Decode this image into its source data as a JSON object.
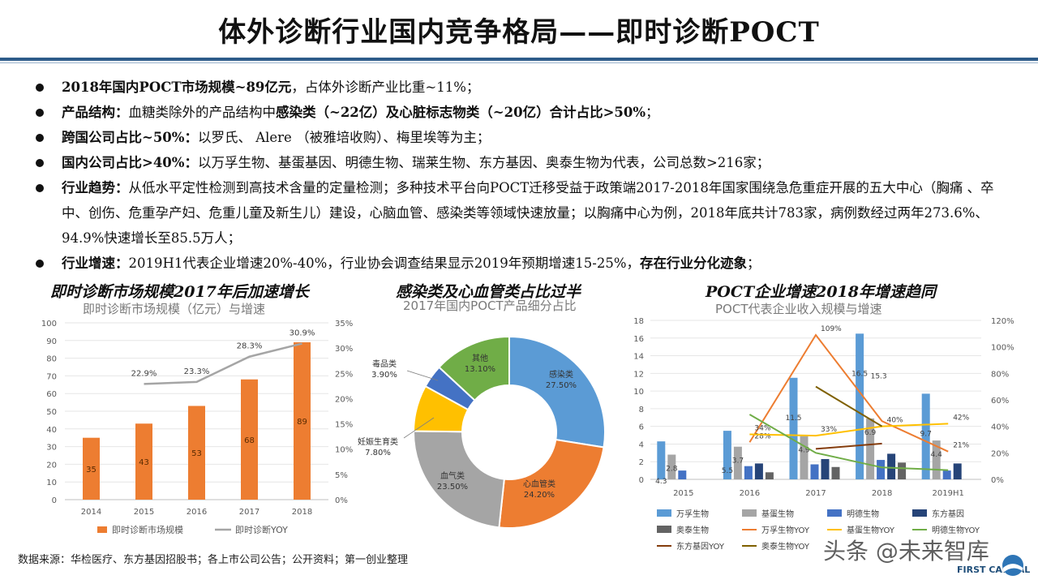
{
  "title": "体外诊断行业国内竞争格局——即时诊断POCT",
  "bullets": [
    {
      "bold": "2018年国内POCT市场规模~89亿元",
      "text": "，占体外诊断产业比重~11%；"
    },
    {
      "bold": "产品结构：",
      "text": "血糖类除外的产品结构中",
      "bold2": "感染类（~22亿）及心脏标志物类（~20亿）合计占比>50%",
      "text2": "；"
    },
    {
      "bold": "跨国公司占比~50%：",
      "text": "以罗氏、 Alere （被雅培收购）、梅里埃等为主；"
    },
    {
      "bold": "国内公司占比>40%：",
      "text": "以万孚生物、基蛋基因、明德生物、瑞莱生物、东方基因、奥泰生物为代表，公司总数>216家；"
    },
    {
      "bold": "行业趋势：",
      "text": "从低水平定性检测到高技术含量的定量检测；多种技术平台向POCT迁移受益于政策端2017-2018年国家围绕急危重症开展的五大中心（胸痛 、卒中、创伤、危重孕产妇、危重儿童及新生儿）建设，心脑血管、感染类等领域快速放量；以胸痛中心为例，2018年底共计783家，病例数经过两年273.6%、94.9%快速增长至85.5万人；"
    },
    {
      "bold": "行业增速：",
      "text": "2019H1代表企业增速20%-40%，行业协会调查结果显示2019年预期增速15-25%，",
      "bold2": "存在行业分化迹象",
      "text2": "；"
    }
  ],
  "chart_data": [
    {
      "type": "bar",
      "heading": "即时诊断市场规模2017年后加速增长",
      "title": "即时诊断市场规模（亿元）与增速",
      "categories": [
        "2014",
        "2015",
        "2016",
        "2017",
        "2018"
      ],
      "series": [
        {
          "name": "即时诊断市场规模",
          "values": [
            35,
            43,
            53,
            68,
            89
          ],
          "color": "#ed7d31"
        },
        {
          "name": "即时诊断YOY",
          "type": "line",
          "values": [
            null,
            22.9,
            23.3,
            28.3,
            30.9
          ],
          "labels": [
            "",
            "22.9%",
            "23.3%",
            "28.3%",
            "30.9%"
          ],
          "color": "#a5a5a5"
        }
      ],
      "ylim": [
        0,
        100
      ],
      "yticks": [
        "0",
        "10",
        "20",
        "30",
        "40",
        "50",
        "60",
        "70",
        "80",
        "90",
        "100"
      ],
      "y2lim": [
        0,
        35
      ],
      "y2ticks": [
        "0%",
        "5%",
        "10%",
        "15%",
        "20%",
        "25%",
        "30%",
        "35%"
      ],
      "legend": "bottom"
    },
    {
      "type": "pie",
      "heading": "感染类及心血管类占比过半",
      "title": "2017年国内POCT产品细分占比",
      "slices": [
        {
          "name": "感染类",
          "value": 27.5,
          "label": "27.50%",
          "color": "#5b9bd5"
        },
        {
          "name": "心血管类",
          "value": 24.2,
          "label": "24.20%",
          "color": "#ed7d31"
        },
        {
          "name": "血气类",
          "value": 23.5,
          "label": "23.50%",
          "color": "#a5a5a5"
        },
        {
          "name": "妊娠生育类",
          "value": 7.8,
          "label": "7.80%",
          "color": "#ffc000"
        },
        {
          "name": "毒品类",
          "value": 3.9,
          "label": "3.90%",
          "color": "#4472c4"
        },
        {
          "name": "其他",
          "value": 13.1,
          "label": "13.10%",
          "color": "#70ad47"
        }
      ]
    },
    {
      "type": "bar",
      "heading": "POCT企业增速2018年增速趋同",
      "title": "POCT代表企业收入规模与增速",
      "categories": [
        "2015",
        "2016",
        "2017",
        "2018",
        "2019H1"
      ],
      "ylim": [
        0,
        18
      ],
      "yticks": [
        "0",
        "2",
        "4",
        "6",
        "8",
        "10",
        "12",
        "14",
        "16",
        "18"
      ],
      "y2lim": [
        0,
        120
      ],
      "y2ticks": [
        "0%",
        "20%",
        "40%",
        "60%",
        "80%",
        "100%",
        "120%"
      ],
      "series": [
        {
          "name": "万孚生物",
          "values": [
            4.3,
            5.5,
            11.5,
            16.5,
            9.7
          ],
          "labels": [
            "4.3",
            "5.5",
            "11.5",
            "16.5",
            "9.7"
          ],
          "color": "#5b9bd5"
        },
        {
          "name": "基蛋生物",
          "values": [
            2.8,
            3.7,
            4.9,
            6.9,
            4.4
          ],
          "labels": [
            "2.8",
            "3.7",
            "4.9",
            "6.9",
            "4.4"
          ],
          "color": "#a5a5a5"
        },
        {
          "name": "明德生物",
          "values": [
            1.0,
            1.5,
            1.7,
            2.2,
            1.0
          ],
          "color": "#4472c4"
        },
        {
          "name": "东方基因",
          "values": [
            null,
            1.8,
            2.3,
            2.9,
            1.8
          ],
          "color": "#264478"
        },
        {
          "name": "奥泰生物",
          "values": [
            null,
            0.8,
            1.4,
            1.9,
            null
          ],
          "color": "#636363"
        },
        {
          "name": "万孚生物YOY",
          "type": "line",
          "values": [
            null,
            28,
            109,
            44,
            21
          ],
          "labels": [
            "",
            "28%",
            "109%",
            "",
            "21%"
          ],
          "color": "#ed7d31"
        },
        {
          "name": "基蛋生物YOY",
          "type": "line",
          "values": [
            null,
            34,
            33,
            40,
            42
          ],
          "labels": [
            "",
            "34%",
            "33%",
            "40%",
            "42%"
          ],
          "color": "#ffc000"
        },
        {
          "name": "明德生物YOY",
          "type": "line",
          "values": [
            null,
            49,
            20,
            9,
            7
          ],
          "color": "#70ad47"
        },
        {
          "name": "东方基因YOY",
          "type": "line",
          "values": [
            null,
            null,
            23,
            27,
            null
          ],
          "color": "#843c0c"
        },
        {
          "name": "奥泰生物YOY",
          "type": "line",
          "values": [
            null,
            null,
            70,
            40,
            null
          ],
          "color": "#7f6000"
        }
      ],
      "extra_label": "15.3",
      "legend": "bottom"
    }
  ],
  "footer": "数据来源：华检医疗、东方基因招股书；各上市公司公告；公开资料；第一创业整理",
  "watermark": "头条 @未来智库",
  "logo": "FIRST CAPITAL"
}
